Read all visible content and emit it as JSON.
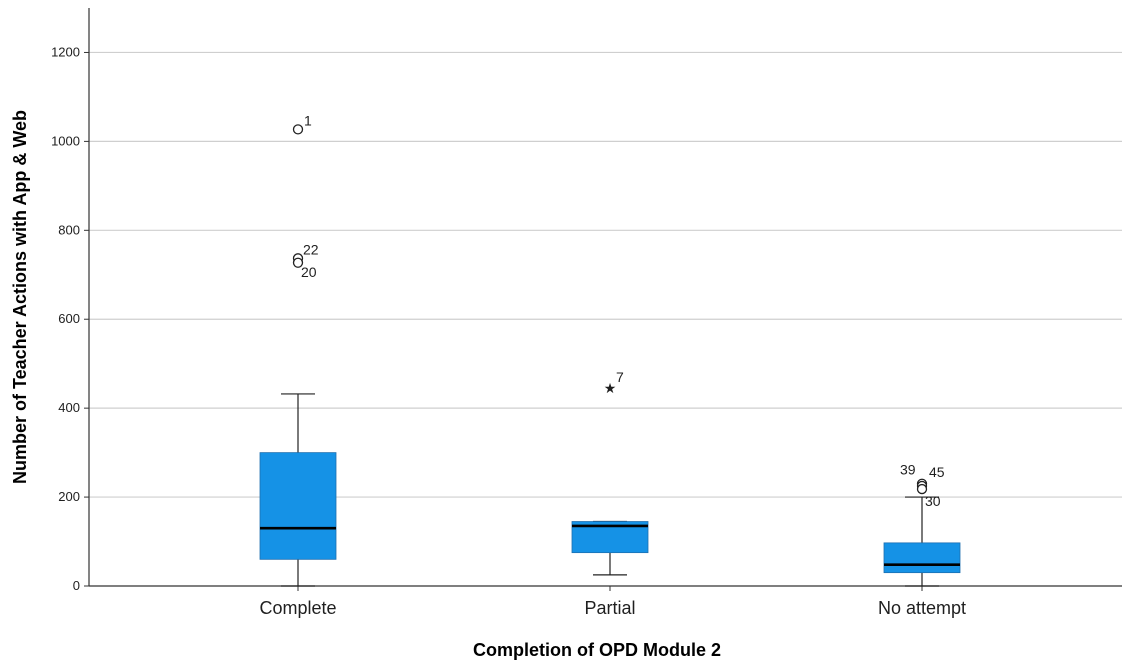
{
  "chart_data": {
    "type": "boxplot",
    "xlabel": "Completion of OPD Module 2",
    "ylabel": "Number of Teacher Actions with App & Web",
    "ylim": [
      0,
      1300
    ],
    "yticks": [
      0,
      200,
      400,
      600,
      800,
      1000,
      1200
    ],
    "grid": "horizontal",
    "box_color": "#1592e6",
    "categories": [
      "Complete",
      "Partial",
      "No attempt"
    ],
    "boxes": [
      {
        "category": "Complete",
        "whisker_low": 0,
        "q1": 60,
        "median": 130,
        "q3": 300,
        "whisker_high": 432,
        "outliers": [
          {
            "id": "1",
            "value": 1027,
            "marker": "circle"
          },
          {
            "id": "22",
            "value": 737,
            "marker": "circle"
          },
          {
            "id": "20",
            "value": 727,
            "marker": "circle"
          }
        ]
      },
      {
        "category": "Partial",
        "whisker_low": 25,
        "q1": 75,
        "median": 135,
        "q3": 145,
        "whisker_high": 145,
        "outliers": [
          {
            "id": "7",
            "value": 448,
            "marker": "star"
          }
        ]
      },
      {
        "category": "No attempt",
        "whisker_low": 0,
        "q1": 30,
        "median": 48,
        "q3": 97,
        "whisker_high": 200,
        "outliers": [
          {
            "id": "39",
            "value": 230,
            "marker": "circle"
          },
          {
            "id": "45",
            "value": 225,
            "marker": "circle"
          },
          {
            "id": "30",
            "value": 218,
            "marker": "circle"
          }
        ]
      }
    ]
  }
}
